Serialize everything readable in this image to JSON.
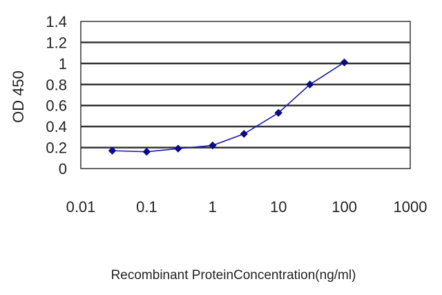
{
  "chart_data": {
    "type": "line",
    "title": "",
    "xlabel": "Recombinant ProteinConcentration(ng/ml)",
    "ylabel": "OD 450",
    "x_scale": "log",
    "xlim": [
      0.01,
      1000
    ],
    "ylim": [
      0,
      1.4
    ],
    "grid": "horizontal",
    "x_ticks": [
      "0.01",
      "0.1",
      "1",
      "10",
      "100",
      "1000"
    ],
    "y_ticks": [
      "0",
      "0.2",
      "0.4",
      "0.6",
      "0.8",
      "1",
      "1.2",
      "1.4"
    ],
    "series": [
      {
        "x": [
          0.03,
          0.1,
          0.3,
          1,
          3,
          10,
          30,
          100
        ],
        "y": [
          0.17,
          0.16,
          0.19,
          0.22,
          0.33,
          0.53,
          0.8,
          1.01
        ]
      }
    ],
    "colors": {
      "line": "#1a1aa6",
      "marker": "#0b0b8a",
      "grid": "#333333",
      "frame": "#333333"
    }
  }
}
